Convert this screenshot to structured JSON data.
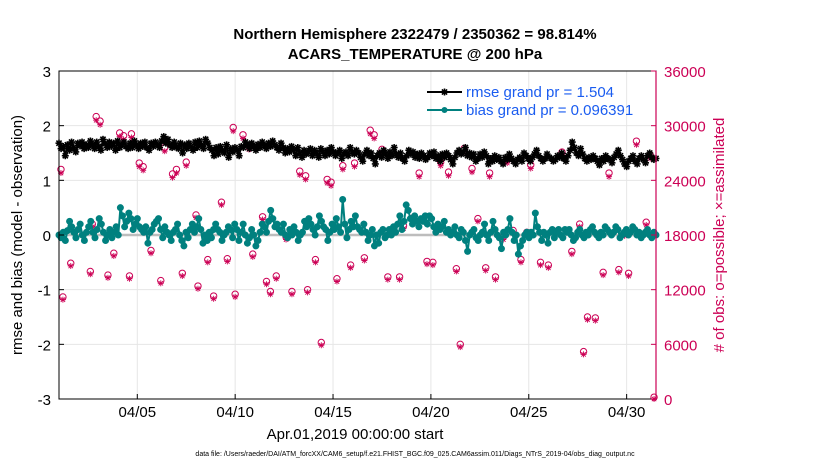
{
  "chart_data": {
    "type": "line",
    "title": "Northern Hemisphere 2322479 / 2350362 = 98.814%",
    "subtitle": "ACARS_TEMPERATURE @ 200 hPa",
    "xlabel": "Apr.01,2019 00:00:00 start",
    "ylabel_left": "rmse and bias (model - observation)",
    "ylabel_right": "# of obs: o=possible; ×=assimilated",
    "ylim_left": [
      -3,
      3
    ],
    "yticks_left": [
      -3,
      -2,
      -1,
      0,
      1,
      2,
      3
    ],
    "ylim_right": [
      0,
      36000
    ],
    "yticks_right": [
      0,
      6000,
      12000,
      18000,
      24000,
      30000,
      36000
    ],
    "xlim_days": [
      1,
      31.5
    ],
    "xticks": [
      {
        "day": 5,
        "label": "04/05"
      },
      {
        "day": 10,
        "label": "04/10"
      },
      {
        "day": 15,
        "label": "04/15"
      },
      {
        "day": 20,
        "label": "04/20"
      },
      {
        "day": 25,
        "label": "04/25"
      },
      {
        "day": 30,
        "label": "04/30"
      }
    ],
    "legend": {
      "position": "top-right",
      "entries": [
        "rmse grand pr = 1.504",
        "bias grand pr = 0.096391"
      ]
    },
    "series_colors": {
      "rmse": "#000000",
      "bias": "#00807f",
      "counts": "#cc0055"
    },
    "rmse": [
      1.68,
      1.58,
      1.62,
      1.45,
      1.65,
      1.55,
      1.7,
      1.6,
      1.52,
      1.68,
      1.63,
      1.7,
      1.58,
      1.65,
      1.6,
      1.72,
      1.65,
      1.58,
      1.7,
      1.62,
      1.55,
      1.75,
      1.67,
      1.6,
      1.7,
      1.62,
      1.68,
      1.55,
      1.72,
      1.6,
      1.65,
      1.7,
      1.62,
      1.58,
      1.68,
      1.6,
      1.72,
      1.65,
      1.58,
      1.68,
      1.62,
      1.7,
      1.6,
      1.55,
      1.68,
      1.62,
      1.7,
      1.65,
      1.6,
      1.72,
      1.8,
      1.68,
      1.75,
      1.65,
      1.6,
      1.7,
      1.62,
      1.58,
      1.68,
      1.5,
      1.65,
      1.58,
      1.68,
      1.62,
      1.55,
      1.7,
      1.6,
      1.72,
      1.65,
      1.58,
      1.75,
      1.68,
      1.6,
      1.55,
      1.45,
      1.6,
      1.48,
      1.62,
      1.55,
      1.5,
      1.65,
      1.42,
      1.58,
      1.52,
      1.6,
      1.55,
      1.45,
      1.62,
      1.6,
      1.7,
      1.65,
      1.58,
      1.68,
      1.62,
      1.55,
      1.66,
      1.6,
      1.7,
      1.63,
      1.58,
      1.68,
      1.62,
      1.72,
      1.65,
      1.6,
      1.55,
      1.68,
      1.6,
      1.5,
      1.58,
      1.52,
      1.62,
      1.55,
      1.45,
      1.6,
      1.5,
      1.42,
      1.55,
      1.48,
      1.52,
      1.58,
      1.45,
      1.55,
      1.5,
      1.42,
      1.58,
      1.52,
      1.45,
      1.55,
      1.48,
      1.6,
      1.52,
      1.45,
      1.5,
      1.55,
      1.4,
      1.48,
      1.52,
      1.45,
      1.6,
      1.52,
      1.48,
      1.55,
      1.5,
      1.42,
      1.35,
      1.48,
      1.55,
      1.45,
      1.5,
      1.4,
      1.3,
      1.45,
      1.5,
      1.42,
      1.55,
      1.48,
      1.4,
      1.52,
      1.45,
      1.6,
      1.48,
      1.42,
      1.5,
      1.4,
      1.35,
      1.45,
      1.55,
      1.48,
      1.52,
      1.42,
      1.48,
      1.4,
      1.5,
      1.45,
      1.38,
      1.42,
      1.5,
      1.45,
      1.52,
      1.4,
      1.45,
      1.35,
      1.48,
      1.42,
      1.5,
      1.45,
      1.38,
      1.3,
      1.42,
      1.5,
      1.55,
      1.48,
      1.52,
      1.6,
      1.45,
      1.5,
      1.42,
      1.48,
      1.35,
      1.4,
      1.48,
      1.42,
      1.52,
      1.45,
      1.3,
      1.4,
      1.35,
      1.45,
      1.38,
      1.42,
      1.35,
      1.3,
      1.42,
      1.38,
      1.48,
      1.4,
      1.35,
      1.3,
      1.38,
      1.42,
      1.35,
      1.5,
      1.45,
      1.4,
      1.35,
      1.42,
      1.48,
      1.55,
      1.45,
      1.4,
      1.35,
      1.4,
      1.48,
      1.42,
      1.4,
      1.35,
      1.38,
      1.45,
      1.42,
      1.5,
      1.4,
      1.35,
      1.45,
      1.55,
      1.7,
      1.6,
      1.5,
      1.45,
      1.58,
      1.48,
      1.4,
      1.35,
      1.42,
      1.38,
      1.45,
      1.4,
      1.35,
      1.28,
      1.4,
      1.35,
      1.45,
      1.4,
      1.38,
      1.32,
      1.42,
      1.48,
      1.55,
      1.45,
      1.38,
      1.3,
      1.25,
      1.35,
      1.4,
      1.45,
      1.35,
      1.3,
      1.4,
      1.45,
      1.38,
      1.32,
      1.45,
      1.5,
      1.42,
      1.38,
      1.4
    ],
    "bias": [
      0.0,
      -0.05,
      0.05,
      -0.1,
      0.08,
      0.25,
      0.15,
      0.05,
      -0.05,
      0.1,
      0.2,
      0.0,
      -0.1,
      0.05,
      0.15,
      0.25,
      0.05,
      -0.05,
      0.1,
      0.3,
      0.2,
      0.05,
      -0.1,
      0.0,
      0.1,
      -0.05,
      0.05,
      0.15,
      0.0,
      0.5,
      0.35,
      0.15,
      0.25,
      0.4,
      0.3,
      0.1,
      0.2,
      0.3,
      0.15,
      0.1,
      0.05,
      0.15,
      -0.15,
      0.05,
      0.1,
      0.2,
      0.25,
      0.3,
      0.1,
      -0.05,
      0.15,
      0.05,
      0.0,
      -0.1,
      0.05,
      0.1,
      0.2,
      0.0,
      -0.1,
      -0.2,
      0.05,
      -0.05,
      0.1,
      0.2,
      0.05,
      0.15,
      0.3,
      0.1,
      -0.15,
      0.0,
      -0.1,
      0.05,
      -0.05,
      0.1,
      0.2,
      0.1,
      0.05,
      -0.1,
      0.0,
      0.05,
      0.15,
      0.1,
      -0.05,
      0.2,
      0.1,
      -0.1,
      0.05,
      0.2,
      0.0,
      -0.15,
      -0.05,
      0.1,
      0.0,
      -0.2,
      -0.1,
      0.05,
      0.2,
      0.15,
      0.05,
      0.25,
      0.45,
      0.3,
      0.15,
      0.2,
      0.1,
      0.05,
      0.2,
      0.0,
      -0.05,
      0.1,
      0.0,
      0.15,
      0.05,
      -0.1,
      0.0,
      0.05,
      0.25,
      0.15,
      0.3,
      0.2,
      0.1,
      0.0,
      0.15,
      0.35,
      0.25,
      0.15,
      0.1,
      -0.1,
      0.05,
      0.2,
      0.1,
      0.3,
      0.15,
      0.05,
      0.65,
      0.2,
      -0.05,
      0.1,
      0.25,
      0.15,
      0.35,
      0.15,
      0.1,
      0.05,
      0.2,
      0.05,
      -0.1,
      0.0,
      0.1,
      -0.2,
      0.0,
      -0.15,
      0.05,
      0.1,
      -0.05,
      0.0,
      0.1,
      0.0,
      0.15,
      0.05,
      0.2,
      0.35,
      0.1,
      0.25,
      0.55,
      0.45,
      0.3,
      0.2,
      0.35,
      0.25,
      0.15,
      0.3,
      0.25,
      0.35,
      0.2,
      0.35,
      0.3,
      0.15,
      0.05,
      0.2,
      0.1,
      0.15,
      0.25,
      0.05,
      0.1,
      0.0,
      0.05,
      0.15,
      0.0,
      -0.05,
      0.1,
      0.05,
      -0.1,
      -0.3,
      0.0,
      0.05,
      0.1,
      -0.05,
      -0.1,
      0.0,
      0.05,
      0.2,
      0.0,
      -0.1,
      0.05,
      0.25,
      0.1,
      0.0,
      -0.05,
      -0.25,
      0.05,
      0.0,
      0.1,
      0.3,
      0.05,
      -0.1,
      0.0,
      -0.35,
      -0.2,
      -0.1,
      0.0,
      0.05,
      -0.05,
      0.05,
      0.0,
      0.4,
      0.15,
      0.05,
      -0.1,
      0.05,
      0.0,
      -0.15,
      0.05,
      0.1,
      -0.05,
      0.05,
      0.1,
      0.0,
      -0.05,
      0.1,
      0.05,
      0.1,
      0.0,
      -0.1,
      -0.05,
      0.05,
      0.1,
      0.0,
      -0.05,
      0.05,
      0.0,
      0.1,
      0.15,
      0.05,
      0.0,
      -0.05,
      0.05,
      0.0,
      0.15,
      0.1,
      0.05,
      0.0,
      0.05,
      0.15,
      0.1,
      -0.05,
      0.0,
      0.05,
      0.1,
      0.0,
      0.05,
      0.15,
      0.1,
      0.0,
      0.05,
      -0.05,
      0.0,
      0.05,
      0.1,
      0.0,
      -0.05,
      0.05,
      0.0
    ],
    "obs_possible_points": [
      [
        1.1,
        25200
      ],
      [
        1.2,
        11200
      ],
      [
        1.6,
        14900
      ],
      [
        2.6,
        14000
      ],
      [
        2.7,
        19200
      ],
      [
        2.9,
        31000
      ],
      [
        3.1,
        30500
      ],
      [
        3.5,
        13600
      ],
      [
        3.8,
        16000
      ],
      [
        4.1,
        29200
      ],
      [
        4.3,
        28900
      ],
      [
        4.6,
        13500
      ],
      [
        4.7,
        29100
      ],
      [
        5.1,
        25900
      ],
      [
        5.3,
        25500
      ],
      [
        5.7,
        16300
      ],
      [
        6.2,
        13000
      ],
      [
        6.4,
        27600
      ],
      [
        6.8,
        24700
      ],
      [
        7.0,
        25200
      ],
      [
        7.3,
        13800
      ],
      [
        7.5,
        26000
      ],
      [
        8.0,
        20200
      ],
      [
        8.1,
        12400
      ],
      [
        8.6,
        15300
      ],
      [
        8.9,
        11300
      ],
      [
        9.3,
        21600
      ],
      [
        9.6,
        15400
      ],
      [
        9.9,
        29800
      ],
      [
        10.0,
        11500
      ],
      [
        10.4,
        29000
      ],
      [
        10.7,
        27800
      ],
      [
        10.9,
        15900
      ],
      [
        11.4,
        20000
      ],
      [
        11.6,
        12900
      ],
      [
        11.8,
        11800
      ],
      [
        12.1,
        13500
      ],
      [
        12.6,
        17800
      ],
      [
        12.9,
        11800
      ],
      [
        13.3,
        25000
      ],
      [
        13.6,
        24500
      ],
      [
        13.7,
        12000
      ],
      [
        14.1,
        15300
      ],
      [
        14.4,
        6200
      ],
      [
        14.7,
        24100
      ],
      [
        14.9,
        23800
      ],
      [
        15.2,
        13200
      ],
      [
        15.5,
        25600
      ],
      [
        15.9,
        14700
      ],
      [
        16.1,
        25900
      ],
      [
        16.6,
        15500
      ],
      [
        16.9,
        29500
      ],
      [
        17.1,
        29000
      ],
      [
        17.5,
        27400
      ],
      [
        17.8,
        13400
      ],
      [
        18.4,
        13400
      ],
      [
        18.6,
        19000
      ],
      [
        19.1,
        19900
      ],
      [
        19.4,
        24800
      ],
      [
        19.8,
        15100
      ],
      [
        20.1,
        15000
      ],
      [
        20.5,
        26000
      ],
      [
        20.9,
        24900
      ],
      [
        21.3,
        14300
      ],
      [
        21.5,
        6000
      ],
      [
        21.7,
        27500
      ],
      [
        22.1,
        25300
      ],
      [
        22.4,
        19800
      ],
      [
        22.8,
        14400
      ],
      [
        23.0,
        24800
      ],
      [
        23.3,
        13400
      ],
      [
        23.7,
        17800
      ],
      [
        23.9,
        26300
      ],
      [
        24.2,
        18500
      ],
      [
        24.6,
        15300
      ],
      [
        24.9,
        18300
      ],
      [
        25.1,
        25700
      ],
      [
        25.6,
        15000
      ],
      [
        26.0,
        14700
      ],
      [
        26.4,
        18400
      ],
      [
        26.7,
        27100
      ],
      [
        27.2,
        16200
      ],
      [
        27.6,
        19200
      ],
      [
        27.8,
        5200
      ],
      [
        28.0,
        9000
      ],
      [
        28.4,
        8900
      ],
      [
        28.8,
        13900
      ],
      [
        29.1,
        24800
      ],
      [
        29.6,
        14200
      ],
      [
        29.9,
        18200
      ],
      [
        30.1,
        13800
      ],
      [
        30.5,
        28300
      ],
      [
        31.0,
        19400
      ],
      [
        31.2,
        26800
      ],
      [
        31.4,
        200
      ]
    ],
    "obs_assimilated_points": [
      [
        1.1,
        24800
      ],
      [
        1.2,
        10900
      ],
      [
        1.6,
        14600
      ],
      [
        2.6,
        13700
      ],
      [
        2.7,
        18900
      ],
      [
        2.9,
        30600
      ],
      [
        3.1,
        30100
      ],
      [
        3.5,
        13300
      ],
      [
        3.8,
        15700
      ],
      [
        4.1,
        28800
      ],
      [
        4.3,
        28500
      ],
      [
        4.6,
        13200
      ],
      [
        4.7,
        28700
      ],
      [
        5.1,
        25500
      ],
      [
        5.3,
        25100
      ],
      [
        5.7,
        16000
      ],
      [
        6.2,
        12700
      ],
      [
        6.4,
        27200
      ],
      [
        6.8,
        24300
      ],
      [
        7.0,
        24800
      ],
      [
        7.3,
        13500
      ],
      [
        7.5,
        25600
      ],
      [
        8.0,
        19900
      ],
      [
        8.1,
        12100
      ],
      [
        8.6,
        15000
      ],
      [
        8.9,
        11000
      ],
      [
        9.3,
        21300
      ],
      [
        9.6,
        15100
      ],
      [
        9.9,
        29400
      ],
      [
        10.0,
        11200
      ],
      [
        10.4,
        28600
      ],
      [
        10.7,
        27400
      ],
      [
        10.9,
        15600
      ],
      [
        11.4,
        19700
      ],
      [
        11.6,
        12600
      ],
      [
        11.8,
        11500
      ],
      [
        12.1,
        13200
      ],
      [
        12.6,
        17500
      ],
      [
        12.9,
        11500
      ],
      [
        13.3,
        24600
      ],
      [
        13.6,
        24100
      ],
      [
        13.7,
        11700
      ],
      [
        14.1,
        15000
      ],
      [
        14.4,
        5900
      ],
      [
        14.7,
        23700
      ],
      [
        14.9,
        23400
      ],
      [
        15.2,
        12900
      ],
      [
        15.5,
        25200
      ],
      [
        15.9,
        14400
      ],
      [
        16.1,
        25500
      ],
      [
        16.6,
        15200
      ],
      [
        16.9,
        29100
      ],
      [
        17.1,
        28600
      ],
      [
        17.5,
        27000
      ],
      [
        17.8,
        13100
      ],
      [
        18.4,
        13100
      ],
      [
        18.6,
        18700
      ],
      [
        19.1,
        19600
      ],
      [
        19.4,
        24400
      ],
      [
        19.8,
        14800
      ],
      [
        20.1,
        14700
      ],
      [
        20.5,
        25600
      ],
      [
        20.9,
        24500
      ],
      [
        21.3,
        14000
      ],
      [
        21.5,
        5700
      ],
      [
        21.7,
        27100
      ],
      [
        22.1,
        24900
      ],
      [
        22.4,
        19500
      ],
      [
        22.8,
        14100
      ],
      [
        23.0,
        24400
      ],
      [
        23.3,
        13100
      ],
      [
        23.7,
        17500
      ],
      [
        23.9,
        25900
      ],
      [
        24.2,
        18200
      ],
      [
        24.6,
        15000
      ],
      [
        24.9,
        18000
      ],
      [
        25.1,
        25300
      ],
      [
        25.6,
        14700
      ],
      [
        26.0,
        14400
      ],
      [
        26.4,
        18100
      ],
      [
        26.7,
        26700
      ],
      [
        27.2,
        15900
      ],
      [
        27.6,
        18900
      ],
      [
        27.8,
        4900
      ],
      [
        28.0,
        8700
      ],
      [
        28.4,
        8600
      ],
      [
        28.8,
        13600
      ],
      [
        29.1,
        24400
      ],
      [
        29.6,
        13900
      ],
      [
        29.9,
        17900
      ],
      [
        30.1,
        13500
      ],
      [
        30.5,
        27900
      ],
      [
        31.0,
        19100
      ],
      [
        31.2,
        26400
      ],
      [
        31.4,
        0
      ]
    ]
  },
  "footer_text": "data file: /Users/raeder/DAI/ATM_forcXX/CAM6_setup/f.e21.FHIST_BGC.f09_025.CAM6assim.011/Diags_NTrS_2019-04/obs_diag_output.nc"
}
